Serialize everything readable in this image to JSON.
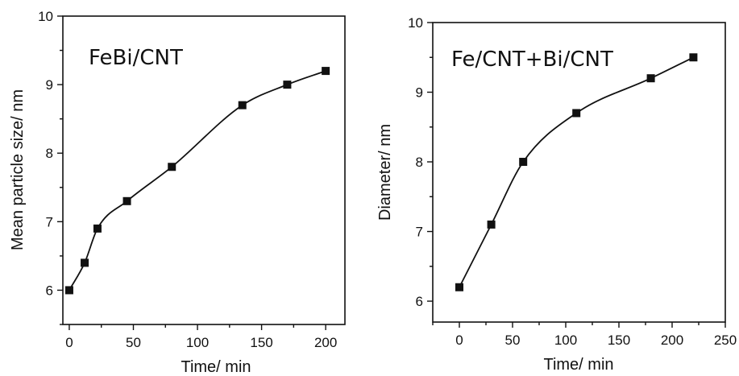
{
  "chart_data": [
    {
      "type": "line",
      "title": "FeBi/CNT",
      "xlabel": "Time/ min",
      "ylabel": "Mean particle size/ nm",
      "xlim": [
        -5,
        215
      ],
      "ylim": [
        5.5,
        10
      ],
      "xticks": [
        "0",
        "50",
        "100",
        "150",
        "200"
      ],
      "yticks": [
        "6",
        "7",
        "8",
        "9",
        "10"
      ],
      "x": [
        0,
        12,
        22,
        45,
        80,
        135,
        170,
        200
      ],
      "y": [
        6.0,
        6.4,
        6.9,
        7.3,
        7.8,
        8.7,
        9.0,
        9.2
      ],
      "marker": "square",
      "grid": false
    },
    {
      "type": "line",
      "title": "Fe/CNT+Bi/CNT",
      "xlabel": "Time/ min",
      "ylabel": "Diameter/ nm",
      "xlim": [
        -25,
        250
      ],
      "ylim": [
        5.7,
        10
      ],
      "xticks": [
        "0",
        "50",
        "100",
        "150",
        "200",
        "250"
      ],
      "yticks": [
        "6",
        "7",
        "8",
        "9",
        "10"
      ],
      "x": [
        0,
        30,
        60,
        110,
        180,
        220
      ],
      "y": [
        6.2,
        7.1,
        8.0,
        8.7,
        9.2,
        9.5
      ],
      "marker": "square",
      "grid": false
    }
  ]
}
